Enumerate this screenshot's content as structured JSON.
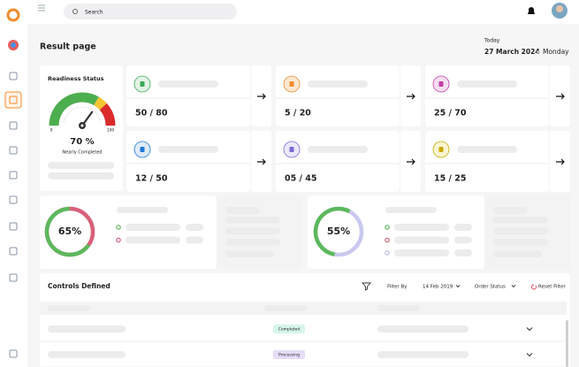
{
  "header": {
    "search_placeholder": "Search"
  },
  "page": {
    "title": "Result page",
    "date_caption": "Today",
    "date": "27 March 2024",
    "weekday": "Monday"
  },
  "readiness": {
    "title": "Readiness Status",
    "min": 0,
    "max": 100,
    "value": 70,
    "value_label": "70 %",
    "caption": "Nearly Completed"
  },
  "cards": [
    {
      "value": "50 / 80",
      "color": "#3aa856",
      "bg": "#e3f4e6"
    },
    {
      "value": "5 / 20",
      "color": "#f08c2e",
      "bg": "#fde7d2"
    },
    {
      "value": "25 / 70",
      "color": "#c43ca8",
      "bg": "#f8def2"
    },
    {
      "value": "12 / 50",
      "color": "#2277d8",
      "bg": "#dfebfb"
    },
    {
      "value": "05 / 45",
      "color": "#7b6ad6",
      "bg": "#ebe8fb"
    },
    {
      "value": "15 / 25",
      "color": "#c9aa00",
      "bg": "#fbf5d2"
    }
  ],
  "donuts": [
    {
      "value": 65,
      "value_label": "65%",
      "color": "#5cb85c",
      "rest_color": "#d9607a"
    },
    {
      "value": 55,
      "value_label": "55%",
      "color": "#5cb85c",
      "rest_color": "#c9c9f0"
    }
  ],
  "table": {
    "title": "Controls Defined",
    "filter_label": "Filter By",
    "date_filter": "14 Feb 2019",
    "status_filter": "Order Status",
    "reset": "Reset Filter",
    "rows": [
      {
        "status": "Completed",
        "color": "#1f9d7a",
        "bg": "#d6f5ec"
      },
      {
        "status": "Processing",
        "color": "#7052c8",
        "bg": "#e6ddfb"
      }
    ]
  }
}
